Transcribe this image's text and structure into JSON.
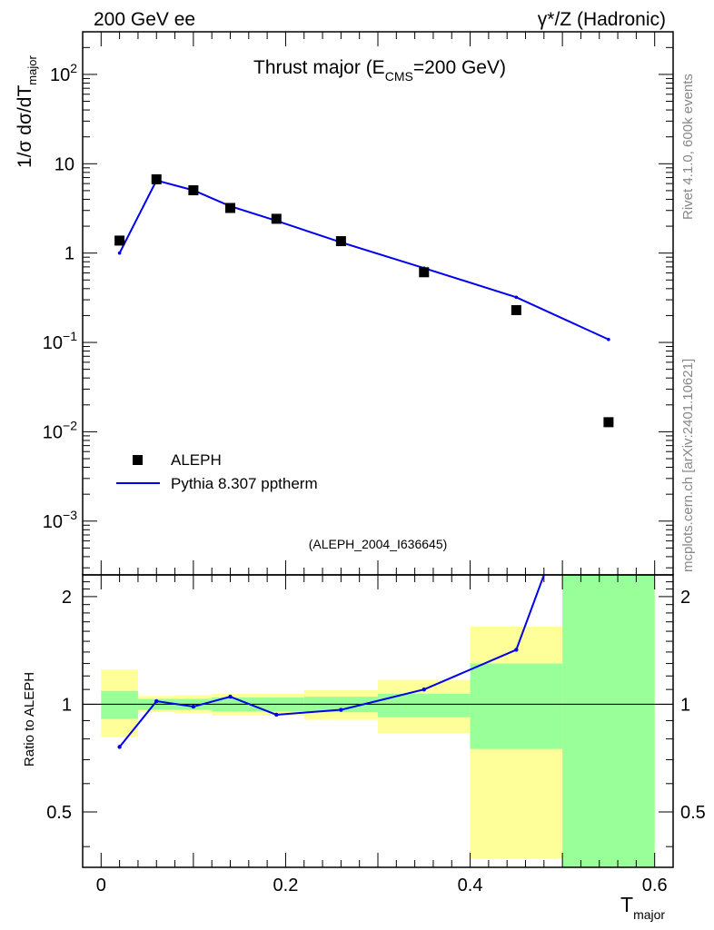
{
  "header": {
    "left_label": "200 GeV ee",
    "right_label": "γ*/Z (Hadronic)"
  },
  "side_labels": {
    "rivet": "Rivet 4.1.0,  600k events",
    "mcplots": "mcplots.cern.ch [arXiv:2401.10621]"
  },
  "chart_data": [
    {
      "type": "scatter",
      "panel": "main",
      "title": "Thrust major (E_CMS=200 GeV)",
      "analysis_label": "(ALEPH_2004_I636645)",
      "ylabel": "1/σ  dσ/dT_major",
      "yscale": "log",
      "ylim": [
        0.00025,
        300
      ],
      "xlim": [
        -0.02,
        0.62
      ],
      "ytick_labels": [
        "10^-3",
        "10^-2",
        "10^-1",
        "1",
        "10",
        "10^2"
      ],
      "ytick_values": [
        0.001,
        0.01,
        0.1,
        1,
        10,
        100
      ],
      "legend": [
        "ALEPH",
        "Pythia 8.307 pptherm"
      ],
      "legend_position": "bottom-left",
      "series": [
        {
          "name": "ALEPH",
          "style": "markers",
          "x": [
            0.02,
            0.06,
            0.1,
            0.14,
            0.19,
            0.26,
            0.35,
            0.45,
            0.55
          ],
          "y": [
            1.38,
            6.7,
            5.05,
            3.2,
            2.42,
            1.36,
            0.61,
            0.23,
            0.0128
          ]
        },
        {
          "name": "Pythia 8.307 pptherm",
          "style": "line",
          "color": "#0000ee",
          "x": [
            0.02,
            0.06,
            0.1,
            0.14,
            0.19,
            0.26,
            0.35,
            0.45,
            0.55
          ],
          "y": [
            1.0,
            6.5,
            5.05,
            3.35,
            2.3,
            1.32,
            0.68,
            0.32,
            0.108
          ]
        }
      ]
    },
    {
      "type": "line",
      "panel": "ratio",
      "ylabel": "Ratio to ALEPH",
      "xlabel": "T_major",
      "yscale": "log",
      "ylim": [
        0.35,
        2.3
      ],
      "xlim": [
        -0.02,
        0.62
      ],
      "xtick_labels": [
        "0",
        "0.2",
        "0.4",
        "0.6"
      ],
      "xtick_values": [
        0,
        0.2,
        0.4,
        0.6
      ],
      "ytick_labels": [
        "0.5",
        "1",
        "2"
      ],
      "ytick_values": [
        0.5,
        1,
        2
      ],
      "bands": [
        {
          "x0": 0.0,
          "x1": 0.04,
          "stat": [
            0.91,
            1.09
          ],
          "total": [
            0.81,
            1.25
          ]
        },
        {
          "x0": 0.04,
          "x1": 0.08,
          "stat": [
            0.965,
            1.035
          ],
          "total": [
            0.95,
            1.055
          ]
        },
        {
          "x0": 0.08,
          "x1": 0.12,
          "stat": [
            0.965,
            1.035
          ],
          "total": [
            0.945,
            1.06
          ]
        },
        {
          "x0": 0.12,
          "x1": 0.16,
          "stat": [
            0.955,
            1.045
          ],
          "total": [
            0.93,
            1.07
          ]
        },
        {
          "x0": 0.16,
          "x1": 0.22,
          "stat": [
            0.955,
            1.045
          ],
          "total": [
            0.93,
            1.07
          ]
        },
        {
          "x0": 0.22,
          "x1": 0.3,
          "stat": [
            0.95,
            1.05
          ],
          "total": [
            0.905,
            1.095
          ]
        },
        {
          "x0": 0.3,
          "x1": 0.4,
          "stat": [
            0.92,
            1.07
          ],
          "total": [
            0.83,
            1.17
          ]
        },
        {
          "x0": 0.4,
          "x1": 0.5,
          "stat": [
            0.75,
            1.3
          ],
          "total": [
            0.37,
            1.65
          ]
        },
        {
          "x0": 0.5,
          "x1": 0.6,
          "stat": [
            0.35,
            2.3
          ],
          "total": [
            0.35,
            2.3
          ]
        }
      ],
      "series": [
        {
          "name": "Pythia 8.307 pptherm",
          "color": "#0000ee",
          "x": [
            0.02,
            0.06,
            0.1,
            0.14,
            0.19,
            0.26,
            0.35,
            0.45,
            0.48
          ],
          "y": [
            0.76,
            1.02,
            0.985,
            1.05,
            0.935,
            0.965,
            1.1,
            1.42,
            2.3
          ]
        }
      ]
    }
  ]
}
